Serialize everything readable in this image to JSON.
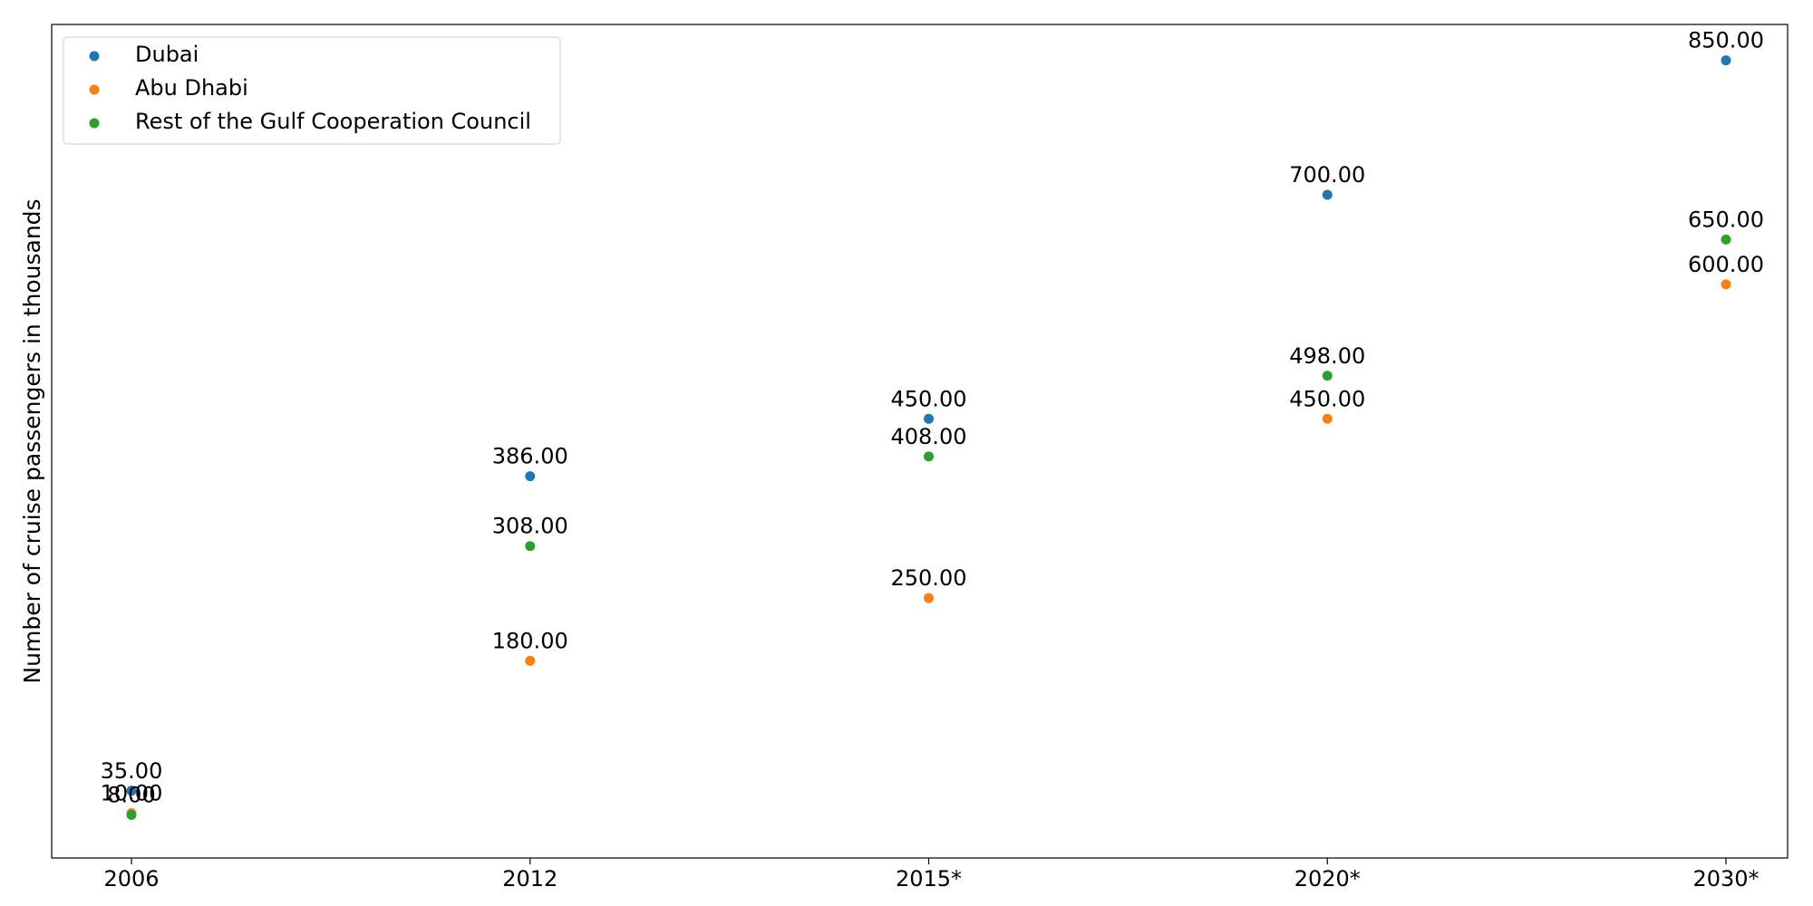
{
  "chart_data": {
    "type": "scatter",
    "title": "",
    "xlabel": "",
    "ylabel": "Number of cruise passengers in thousands",
    "categories": [
      "2006",
      "2012",
      "2015*",
      "2020*",
      "2030*"
    ],
    "ylim": [
      -40,
      890
    ],
    "grid": false,
    "show_y_ticks": false,
    "legend_position": "top-left",
    "value_format": "2dp",
    "series": [
      {
        "name": "Dubai",
        "color": "#1f77b4",
        "values": [
          35,
          386,
          450,
          700,
          850
        ]
      },
      {
        "name": "Abu Dhabi",
        "color": "#ff7f0e",
        "values": [
          10,
          180,
          250,
          450,
          600
        ]
      },
      {
        "name": "Rest of the Gulf Cooperation Council",
        "color": "#2ca02c",
        "values": [
          8,
          308,
          408,
          498,
          650
        ]
      }
    ]
  }
}
